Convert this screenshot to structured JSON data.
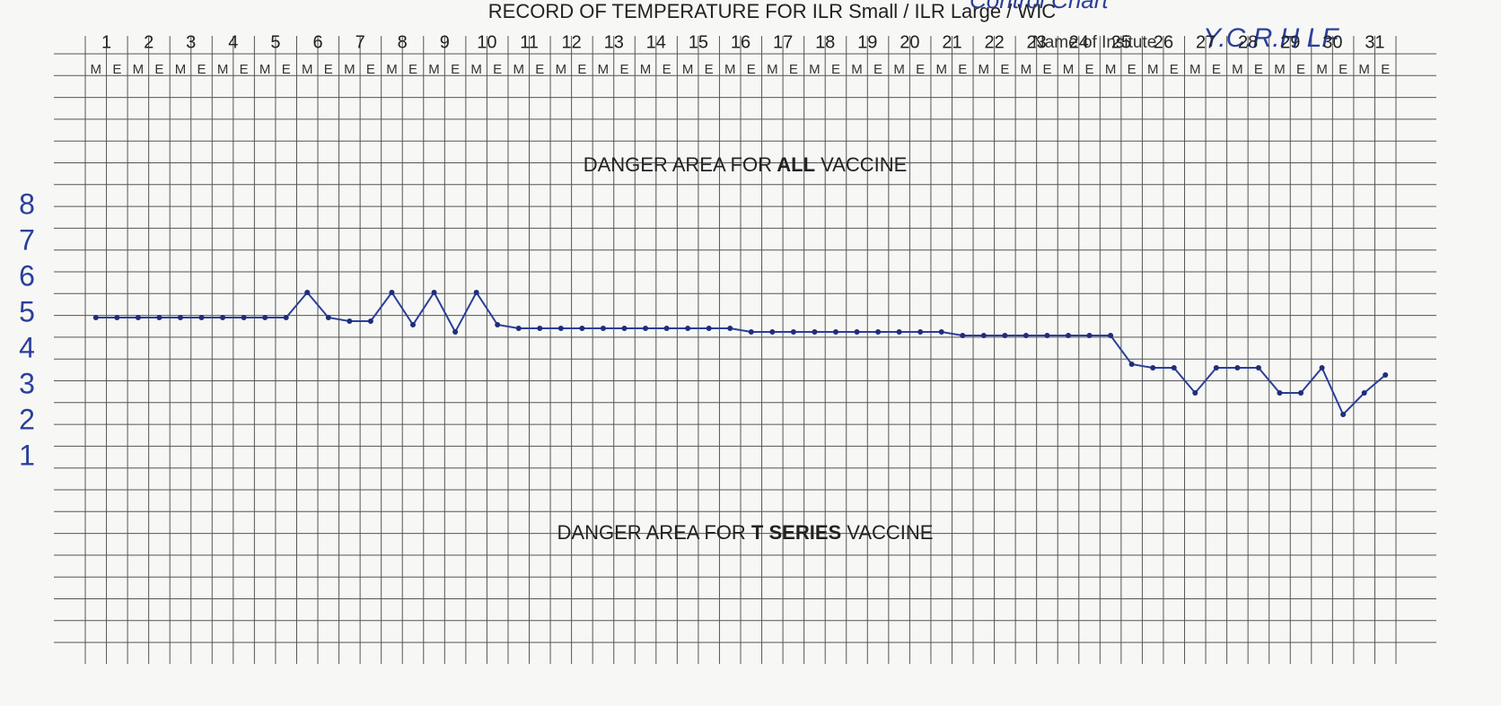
{
  "header": {
    "title_lead": "RECORD OF TEMPERATURE FOR ILR Small / ILR Large / WIC",
    "title_handwritten": "Control Chart",
    "institute_label": "Name of Insitute",
    "institute_name": "Y.C.R.H LF"
  },
  "days": [
    1,
    2,
    3,
    4,
    5,
    6,
    7,
    8,
    9,
    10,
    11,
    12,
    13,
    14,
    15,
    16,
    17,
    18,
    19,
    20,
    21,
    22,
    23,
    24,
    25,
    26,
    27,
    28,
    29,
    30,
    31
  ],
  "shifts": [
    "M",
    "E"
  ],
  "scale": [
    8,
    7,
    6,
    5,
    4,
    3,
    2,
    1
  ],
  "zones": [
    {
      "prefix": "DANGER AREA FOR",
      "bold": "ALL",
      "suffix": "VACCINE"
    },
    {
      "prefix": "DANGER AREA FOR",
      "bold": "T SERIES",
      "suffix": "VACCINE"
    }
  ],
  "readings": [
    4.9,
    4.9,
    4.9,
    4.9,
    4.9,
    4.9,
    4.9,
    4.9,
    4.9,
    4.9,
    5.6,
    4.9,
    4.8,
    4.8,
    5.6,
    4.7,
    5.6,
    4.5,
    5.6,
    4.7,
    4.6,
    4.6,
    4.6,
    4.6,
    4.6,
    4.6,
    4.6,
    4.6,
    4.6,
    4.6,
    4.6,
    4.5,
    4.5,
    4.5,
    4.5,
    4.5,
    4.5,
    4.5,
    4.5,
    4.5,
    4.5,
    4.4,
    4.4,
    4.4,
    4.4,
    4.4,
    4.4,
    4.4,
    4.4,
    3.6,
    3.5,
    3.5,
    2.8,
    3.5,
    3.5,
    3.5,
    2.8,
    2.8,
    3.5,
    2.2,
    2.8,
    3.3
  ]
}
